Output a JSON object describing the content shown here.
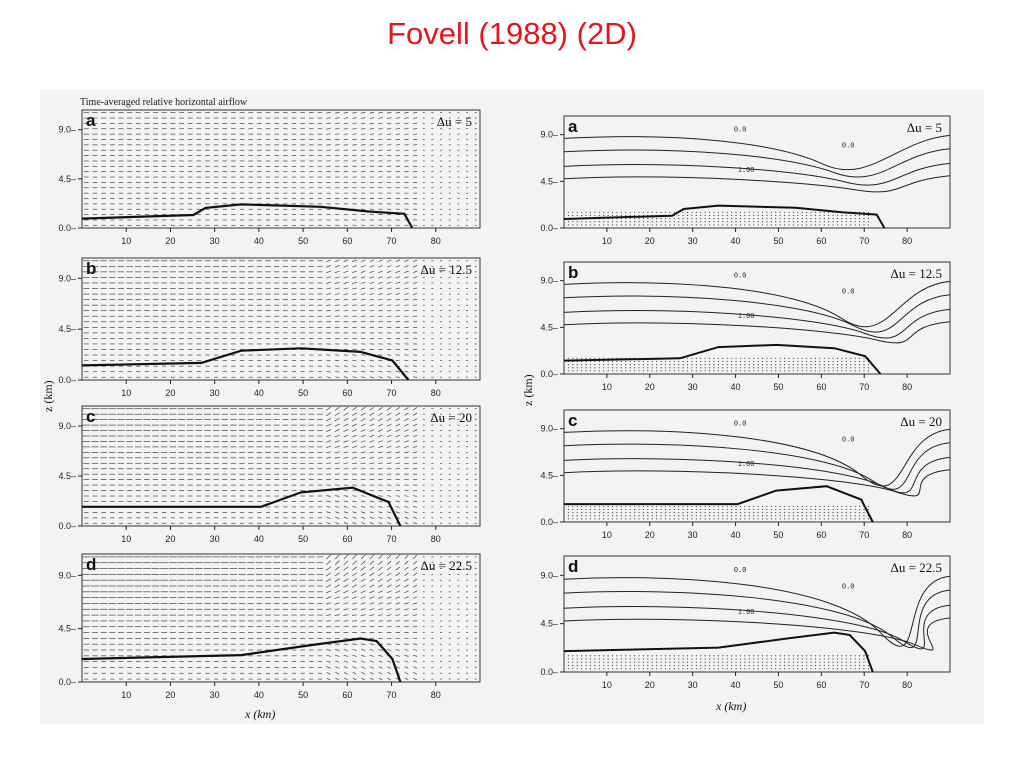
{
  "slide": {
    "title": "Fovell (1988)  (2D)"
  },
  "left_figure": {
    "header": "Time-averaged relative horizontal airflow",
    "z_axis_label": "z (km)",
    "x_axis_label": "x (km)",
    "panels": [
      {
        "letter": "a",
        "du": "Δu = 5"
      },
      {
        "letter": "b",
        "du": "Δu = 12.5"
      },
      {
        "letter": "c",
        "du": "Δu = 20"
      },
      {
        "letter": "d",
        "du": "Δu = 22.5"
      }
    ]
  },
  "right_figure": {
    "z_axis_label": "z (km)",
    "x_axis_label": "x (km)",
    "panels": [
      {
        "letter": "a",
        "du": "Δu = 5"
      },
      {
        "letter": "b",
        "du": "Δu = 12.5"
      },
      {
        "letter": "c",
        "du": "Δu = 20"
      },
      {
        "letter": "d",
        "du": "Δu = 22.5"
      }
    ],
    "contour_labels": [
      "0.0",
      "1.00"
    ]
  },
  "axes": {
    "x_ticks": [
      "10",
      "20",
      "30",
      "40",
      "50",
      "60",
      "70",
      "80"
    ],
    "z_ticks": [
      "0.0",
      "4.5",
      "9.0"
    ]
  },
  "colors": {
    "title": "#e8141b",
    "scan_background": "#f3f3f1",
    "ink": "#111111"
  }
}
